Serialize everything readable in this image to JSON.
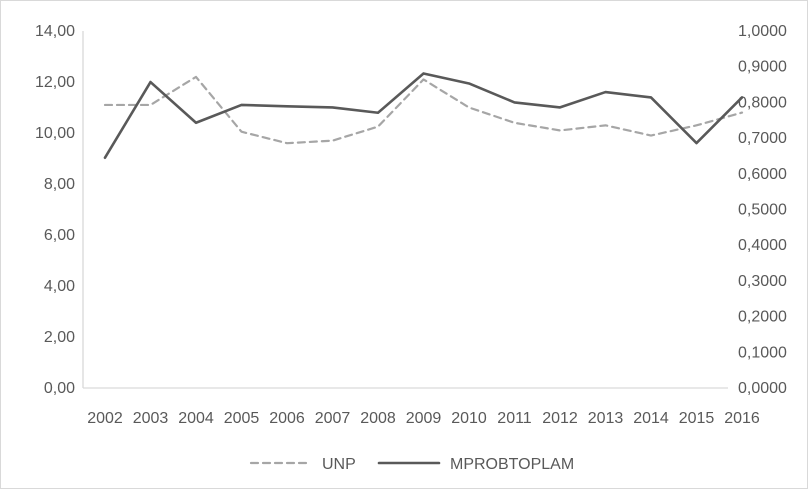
{
  "chart_data": {
    "type": "line",
    "title": "",
    "xlabel": "",
    "ylabel": "",
    "x": [
      "2002",
      "2003",
      "2004",
      "2005",
      "2006",
      "2007",
      "2008",
      "2009",
      "2010",
      "2011",
      "2012",
      "2013",
      "2014",
      "2015",
      "2016"
    ],
    "y_left_ticks": [
      "0,00",
      "2,00",
      "4,00",
      "6,00",
      "8,00",
      "10,00",
      "12,00",
      "14,00"
    ],
    "y_right_ticks": [
      "0,0000",
      "0,1000",
      "0,2000",
      "0,3000",
      "0,4000",
      "0,5000",
      "0,6000",
      "0,7000",
      "0,8000",
      "0,9000",
      "1,0000"
    ],
    "ylim_left": [
      0,
      14
    ],
    "ylim_right": [
      0,
      1
    ],
    "grid": false,
    "legend_position": "bottom",
    "series": [
      {
        "name": "UNP",
        "axis": "left",
        "style": "dashed",
        "color": "#a6a6a6",
        "values": [
          11.1,
          11.1,
          12.2,
          10.05,
          9.6,
          9.7,
          10.25,
          12.1,
          11.0,
          10.4,
          10.1,
          10.3,
          9.9,
          10.3,
          10.8
        ]
      },
      {
        "name": "MPROBTOPLAM",
        "axis": "right",
        "style": "solid",
        "color": "#595959",
        "values": [
          0.645,
          0.857,
          0.743,
          0.793,
          0.789,
          0.786,
          0.771,
          0.881,
          0.853,
          0.8,
          0.786,
          0.829,
          0.814,
          0.686,
          0.814
        ]
      }
    ]
  }
}
